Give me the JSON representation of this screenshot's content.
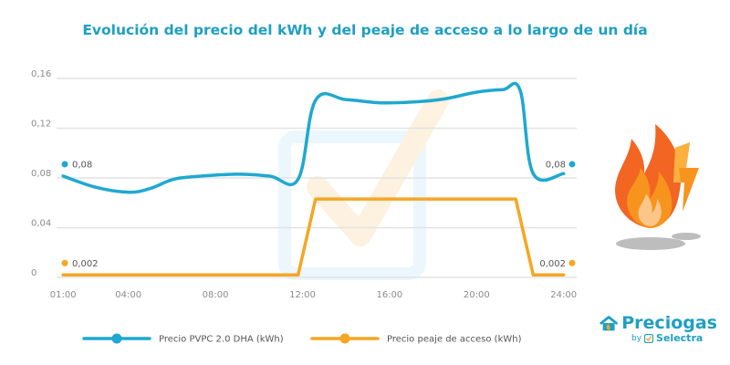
{
  "chart_data": {
    "type": "line",
    "title": "Evolución del precio del kWh y del peaje de acceso a lo largo de un día",
    "x_ticks": [
      "01:00",
      "04:00",
      "08:00",
      "12:00",
      "16:00",
      "20:00",
      "24:00"
    ],
    "x_tick_hours": [
      1,
      4,
      8,
      12,
      16,
      20,
      24
    ],
    "xlim": [
      0.7,
      24.6
    ],
    "y_ticks": [
      "0",
      "0,04",
      "0,08",
      "0,12",
      "0,16"
    ],
    "y_tick_values": [
      0,
      0.04,
      0.08,
      0.12,
      0.16
    ],
    "ylim": [
      0,
      0.16
    ],
    "grid": true,
    "legend_position": "bottom",
    "series": [
      {
        "name": "Precio PVPC 2.0 DHA (kWh)",
        "color": "#1fa8d0",
        "x": [
          1,
          2.5,
          4,
          5,
          6,
          7,
          9,
          10.5,
          11.8,
          12.6,
          14,
          15.5,
          17,
          18.5,
          20,
          21.2,
          22,
          22.6,
          24
        ],
        "y": [
          0.0815,
          0.0725,
          0.0685,
          0.0715,
          0.0785,
          0.081,
          0.083,
          0.0815,
          0.079,
          0.1425,
          0.143,
          0.1405,
          0.141,
          0.1435,
          0.149,
          0.151,
          0.1505,
          0.0835,
          0.0835
        ],
        "start_label": "0,08",
        "end_label": "0,08"
      },
      {
        "name": "Precio peaje de acceso (kWh)",
        "color": "#f5a623",
        "x": [
          1,
          11.8,
          12.6,
          21.8,
          22.6,
          24
        ],
        "y": [
          0.002,
          0.002,
          0.063,
          0.063,
          0.002,
          0.002
        ],
        "start_label": "0,002",
        "end_label": "0,002"
      }
    ]
  },
  "brand": {
    "name": "Preciogas",
    "by": "by",
    "company": "Selectra"
  }
}
